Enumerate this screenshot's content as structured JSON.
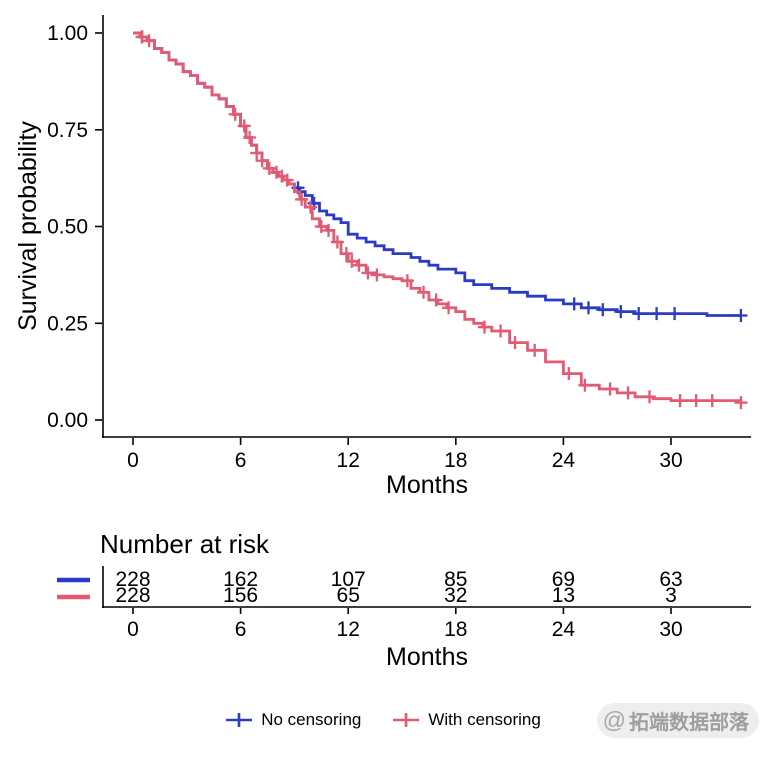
{
  "chart_data": {
    "type": "line",
    "subtype": "kaplan-meier-step-survival",
    "title": "",
    "xlabel": "Months",
    "ylabel": "Survival probability",
    "xlim": [
      0,
      34.5
    ],
    "ylim": [
      0,
      1
    ],
    "x_ticks": [
      0,
      6,
      12,
      18,
      24,
      30
    ],
    "y_ticks": [
      "0.00",
      "0.25",
      "0.50",
      "0.75",
      "1.00"
    ],
    "grid": false,
    "legend_position": "bottom",
    "series": [
      {
        "name": "No censoring",
        "color": "#2C3BC6",
        "x": [
          0,
          0.4,
          0.8,
          1.2,
          1.6,
          2,
          2.4,
          2.8,
          3.2,
          3.6,
          4,
          4.4,
          4.8,
          5.2,
          5.6,
          6,
          6.3,
          6.6,
          6.9,
          7.2,
          7.5,
          7.8,
          8.1,
          8.4,
          8.7,
          9,
          9.3,
          9.6,
          10,
          10.4,
          10.8,
          11.2,
          11.6,
          12,
          12.5,
          13,
          13.5,
          14,
          14.5,
          15,
          15.5,
          16,
          16.5,
          17,
          17.5,
          18,
          18.5,
          19,
          19.5,
          20,
          21,
          22,
          23,
          24,
          25,
          26,
          27,
          28,
          30,
          32,
          33.9
        ],
        "y": [
          1,
          0.99,
          0.98,
          0.96,
          0.95,
          0.93,
          0.92,
          0.9,
          0.89,
          0.87,
          0.86,
          0.84,
          0.83,
          0.81,
          0.79,
          0.76,
          0.73,
          0.71,
          0.69,
          0.67,
          0.65,
          0.64,
          0.63,
          0.62,
          0.61,
          0.6,
          0.59,
          0.58,
          0.56,
          0.54,
          0.53,
          0.52,
          0.51,
          0.48,
          0.47,
          0.46,
          0.45,
          0.44,
          0.43,
          0.43,
          0.42,
          0.41,
          0.4,
          0.39,
          0.39,
          0.38,
          0.36,
          0.35,
          0.35,
          0.34,
          0.33,
          0.32,
          0.31,
          0.3,
          0.29,
          0.285,
          0.28,
          0.275,
          0.275,
          0.27,
          0.27
        ],
        "censor_x": [
          0.5,
          9.2,
          10.1,
          24.6,
          25.4,
          26.2,
          27.2,
          28.2,
          29.2,
          30.2,
          33.9
        ],
        "censor_y": [
          0.99,
          0.6,
          0.56,
          0.3,
          0.29,
          0.285,
          0.28,
          0.275,
          0.275,
          0.275,
          0.27
        ]
      },
      {
        "name": "With censoring",
        "color": "#E25B73",
        "x": [
          0,
          0.4,
          0.8,
          1.2,
          1.6,
          2,
          2.4,
          2.8,
          3.2,
          3.6,
          4,
          4.4,
          4.8,
          5.2,
          5.6,
          6,
          6.3,
          6.6,
          6.9,
          7.2,
          7.5,
          7.8,
          8.1,
          8.4,
          8.7,
          9,
          9.3,
          9.6,
          10,
          10.4,
          10.8,
          11.2,
          11.6,
          12,
          12.5,
          13,
          13.5,
          14,
          14.5,
          15,
          15.5,
          16,
          16.5,
          17,
          17.5,
          18,
          18.5,
          19,
          19.5,
          20,
          21,
          22,
          23,
          24,
          25,
          26,
          27,
          28,
          29,
          30,
          32,
          33.9
        ],
        "y": [
          1,
          0.99,
          0.98,
          0.96,
          0.95,
          0.93,
          0.92,
          0.9,
          0.89,
          0.87,
          0.86,
          0.84,
          0.83,
          0.81,
          0.79,
          0.76,
          0.73,
          0.71,
          0.69,
          0.67,
          0.65,
          0.64,
          0.63,
          0.62,
          0.61,
          0.59,
          0.57,
          0.55,
          0.52,
          0.5,
          0.49,
          0.46,
          0.43,
          0.41,
          0.4,
          0.38,
          0.375,
          0.37,
          0.365,
          0.36,
          0.34,
          0.33,
          0.31,
          0.3,
          0.29,
          0.28,
          0.26,
          0.25,
          0.24,
          0.23,
          0.2,
          0.18,
          0.15,
          0.12,
          0.09,
          0.08,
          0.07,
          0.06,
          0.055,
          0.05,
          0.05,
          0.045
        ],
        "censor_x": [
          0.5,
          0.9,
          5.7,
          6.2,
          6.5,
          6.9,
          7.2,
          7.6,
          8,
          8.3,
          8.6,
          9.4,
          9.9,
          10.5,
          10.9,
          11.4,
          11.9,
          12.2,
          12.6,
          13.1,
          13.6,
          15.3,
          16.2,
          16.9,
          17.6,
          19.6,
          20.5,
          21.3,
          22.4,
          24.3,
          25.2,
          26.6,
          27.6,
          28.8,
          30.5,
          31.4,
          32.3,
          33.9
        ],
        "censor_y": [
          0.99,
          0.98,
          0.79,
          0.76,
          0.73,
          0.69,
          0.67,
          0.65,
          0.64,
          0.63,
          0.62,
          0.57,
          0.55,
          0.5,
          0.49,
          0.46,
          0.43,
          0.41,
          0.4,
          0.38,
          0.375,
          0.36,
          0.33,
          0.31,
          0.29,
          0.24,
          0.23,
          0.2,
          0.18,
          0.12,
          0.09,
          0.08,
          0.07,
          0.06,
          0.05,
          0.05,
          0.05,
          0.045
        ]
      }
    ],
    "risk_table": {
      "title": "Number at risk",
      "xlabel": "Months",
      "x_ticks": [
        0,
        6,
        12,
        18,
        24,
        30
      ],
      "rows": [
        {
          "name": "No censoring",
          "color": "#2C3BC6",
          "values": [
            "228",
            "162",
            "107",
            "85",
            "69",
            "63"
          ]
        },
        {
          "name": "With censoring",
          "color": "#E25B73",
          "values": [
            "228",
            "156",
            "65",
            "32",
            "13",
            "3"
          ]
        }
      ]
    }
  },
  "legend": {
    "items": [
      {
        "label": "No censoring",
        "color": "#2C3BC6"
      },
      {
        "label": "With censoring",
        "color": "#E25B73"
      }
    ]
  },
  "watermark": {
    "symbol": "@",
    "text": "拓端数据部落"
  }
}
